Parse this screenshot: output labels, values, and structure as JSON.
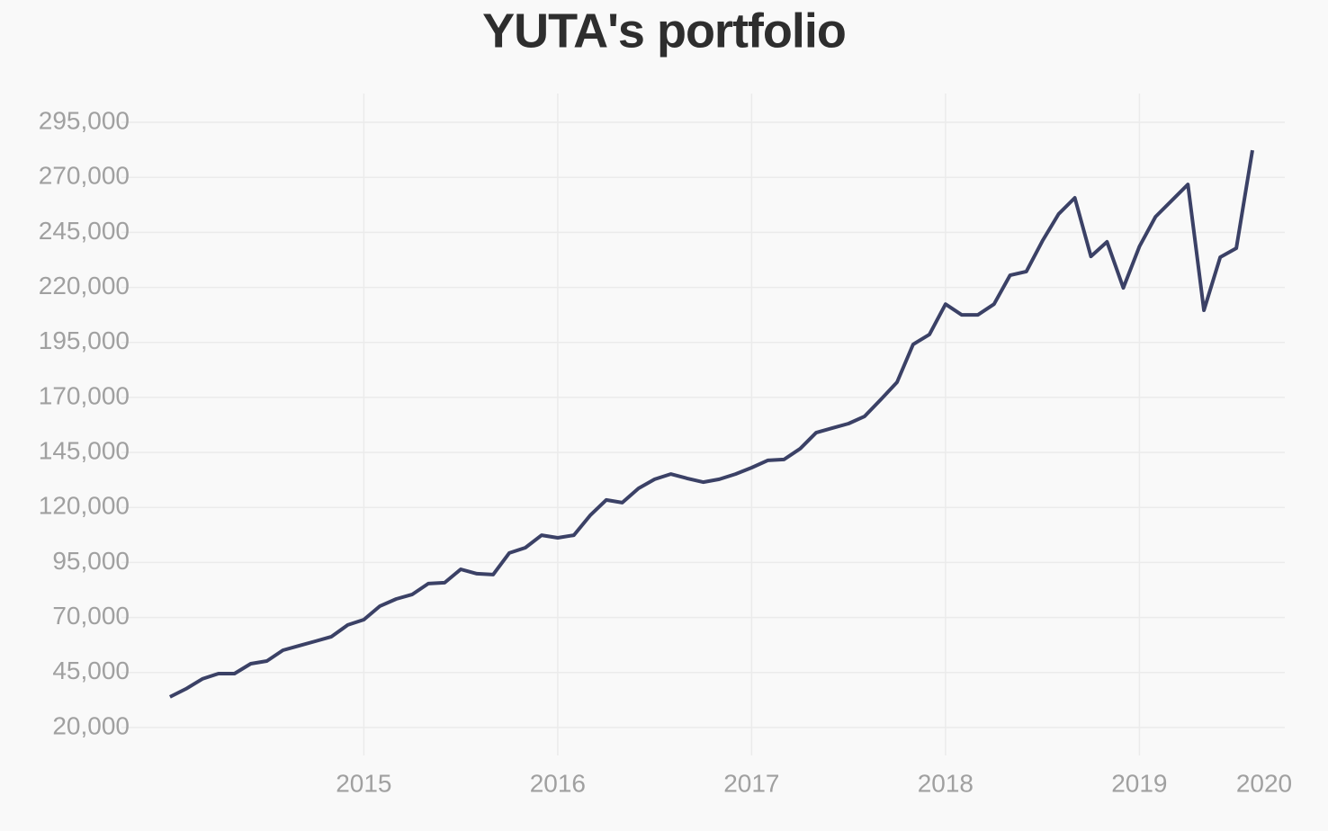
{
  "chart_data": {
    "type": "line",
    "title": "YUTA's portfolio",
    "x": [
      2014,
      2014.083,
      2014.167,
      2014.25,
      2014.333,
      2014.417,
      2014.5,
      2014.583,
      2014.667,
      2014.75,
      2014.833,
      2014.917,
      2015,
      2015.083,
      2015.167,
      2015.25,
      2015.333,
      2015.417,
      2015.5,
      2015.583,
      2015.667,
      2015.75,
      2015.833,
      2015.917,
      2016,
      2016.083,
      2016.167,
      2016.25,
      2016.333,
      2016.417,
      2016.5,
      2016.583,
      2016.667,
      2016.75,
      2016.833,
      2016.917,
      2017,
      2017.083,
      2017.167,
      2017.25,
      2017.333,
      2017.417,
      2017.5,
      2017.583,
      2017.667,
      2017.75,
      2017.833,
      2017.917,
      2018,
      2018.083,
      2018.167,
      2018.25,
      2018.333,
      2018.417,
      2018.5,
      2018.583,
      2018.667,
      2018.75,
      2018.833,
      2018.917,
      2019,
      2019.083,
      2019.167,
      2019.25,
      2019.333,
      2019.417,
      2019.5,
      2019.583
    ],
    "series": [
      {
        "color": "#3b4166",
        "values": [
          33900,
          37600,
          42100,
          44500,
          44500,
          49000,
          50200,
          55100,
          57200,
          59200,
          61300,
          66600,
          69000,
          75200,
          78400,
          80500,
          85400,
          85800,
          91900,
          89900,
          89500,
          99300,
          101700,
          107400,
          106200,
          107400,
          116400,
          123400,
          122200,
          128700,
          132800,
          135200,
          133200,
          131500,
          132800,
          135200,
          138100,
          141400,
          141800,
          146700,
          154000,
          156100,
          158100,
          161400,
          169100,
          176900,
          194100,
          198600,
          212400,
          207500,
          207500,
          212400,
          225500,
          227200,
          241100,
          253300,
          260700,
          234100,
          240700,
          219800,
          238600,
          252100,
          259500,
          266800,
          209600,
          233700,
          237800,
          282300
        ]
      }
    ],
    "xlim": [
      2013.75,
      2019.75
    ],
    "xticks": [
      2015,
      2016,
      2017,
      2018,
      2019,
      2020
    ],
    "ylim": [
      7300,
      308100
    ],
    "yticks": [
      {
        "value": 20000,
        "label": "20,000"
      },
      {
        "value": 45000,
        "label": "45,000"
      },
      {
        "value": 70000,
        "label": "70,000"
      },
      {
        "value": 95000,
        "label": "95,000"
      },
      {
        "value": 120000,
        "label": "120,000"
      },
      {
        "value": 145000,
        "label": "145,000"
      },
      {
        "value": 170000,
        "label": "170,000"
      },
      {
        "value": 195000,
        "label": "195,000"
      },
      {
        "value": 220000,
        "label": "220,000"
      },
      {
        "value": 245000,
        "label": "245,000"
      },
      {
        "value": 270000,
        "label": "270,000"
      },
      {
        "value": 295000,
        "label": "295,000"
      }
    ],
    "grid": true
  }
}
